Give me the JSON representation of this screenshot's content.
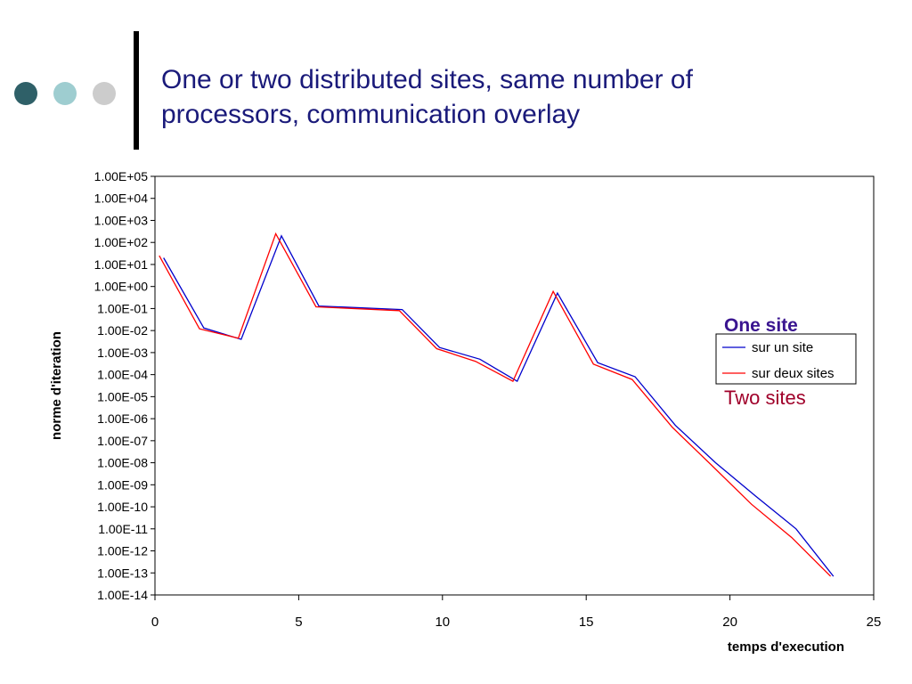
{
  "slide": {
    "title_lines": [
      "One or two distributed sites, same number of",
      "processors, communication overlay"
    ],
    "dot_colors": [
      "#2f6068",
      "#9ecdd0",
      "#cccccc"
    ],
    "title_color": "#1a1a7a"
  },
  "chart_data": {
    "type": "line",
    "title": "",
    "xlabel": "temps d'execution",
    "ylabel": "norme d'iteration",
    "xlim": [
      0,
      25
    ],
    "x_ticks": [
      0,
      5,
      10,
      15,
      20,
      25
    ],
    "y_scale": "log",
    "ylim_log10": [
      -14,
      5
    ],
    "y_tick_labels": [
      "1.00E+05",
      "1.00E+04",
      "1.00E+03",
      "1.00E+02",
      "1.00E+01",
      "1.00E+00",
      "1.00E-01",
      "1.00E-02",
      "1.00E-03",
      "1.00E-04",
      "1.00E-05",
      "1.00E-06",
      "1.00E-07",
      "1.00E-08",
      "1.00E-09",
      "1.00E-10",
      "1.00E-11",
      "1.00E-12",
      "1.00E-13",
      "1.00E-14"
    ],
    "grid": false,
    "legend_position": "right",
    "series": [
      {
        "name": "sur un site",
        "color": "#0000cc",
        "x": [
          0.3,
          1.7,
          3.0,
          4.4,
          5.7,
          8.6,
          9.9,
          11.3,
          12.6,
          14.0,
          15.4,
          16.7,
          18.1,
          19.5,
          20.9,
          22.3,
          23.6
        ],
        "y": [
          20,
          0.013,
          0.004,
          200,
          0.13,
          0.09,
          0.0017,
          0.0005,
          5e-05,
          0.5,
          0.00035,
          8e-05,
          5e-07,
          1e-08,
          3e-10,
          1e-11,
          7e-14
        ]
      },
      {
        "name": "sur deux sites",
        "color": "#ff0000",
        "x": [
          0.15,
          1.55,
          2.9,
          4.2,
          5.6,
          8.5,
          9.8,
          11.15,
          12.45,
          13.85,
          15.25,
          16.6,
          18.0,
          19.35,
          20.75,
          22.15,
          23.5
        ],
        "y": [
          25,
          0.012,
          0.0045,
          250,
          0.12,
          0.08,
          0.0015,
          0.0004,
          5e-05,
          0.6,
          0.0003,
          6e-05,
          4e-07,
          8e-09,
          1.3e-10,
          4e-12,
          7e-14
        ]
      }
    ],
    "annotations": [
      {
        "text": "One site",
        "color": "#3a1590"
      },
      {
        "text": "Two sites",
        "color": "#a0002a"
      }
    ]
  }
}
